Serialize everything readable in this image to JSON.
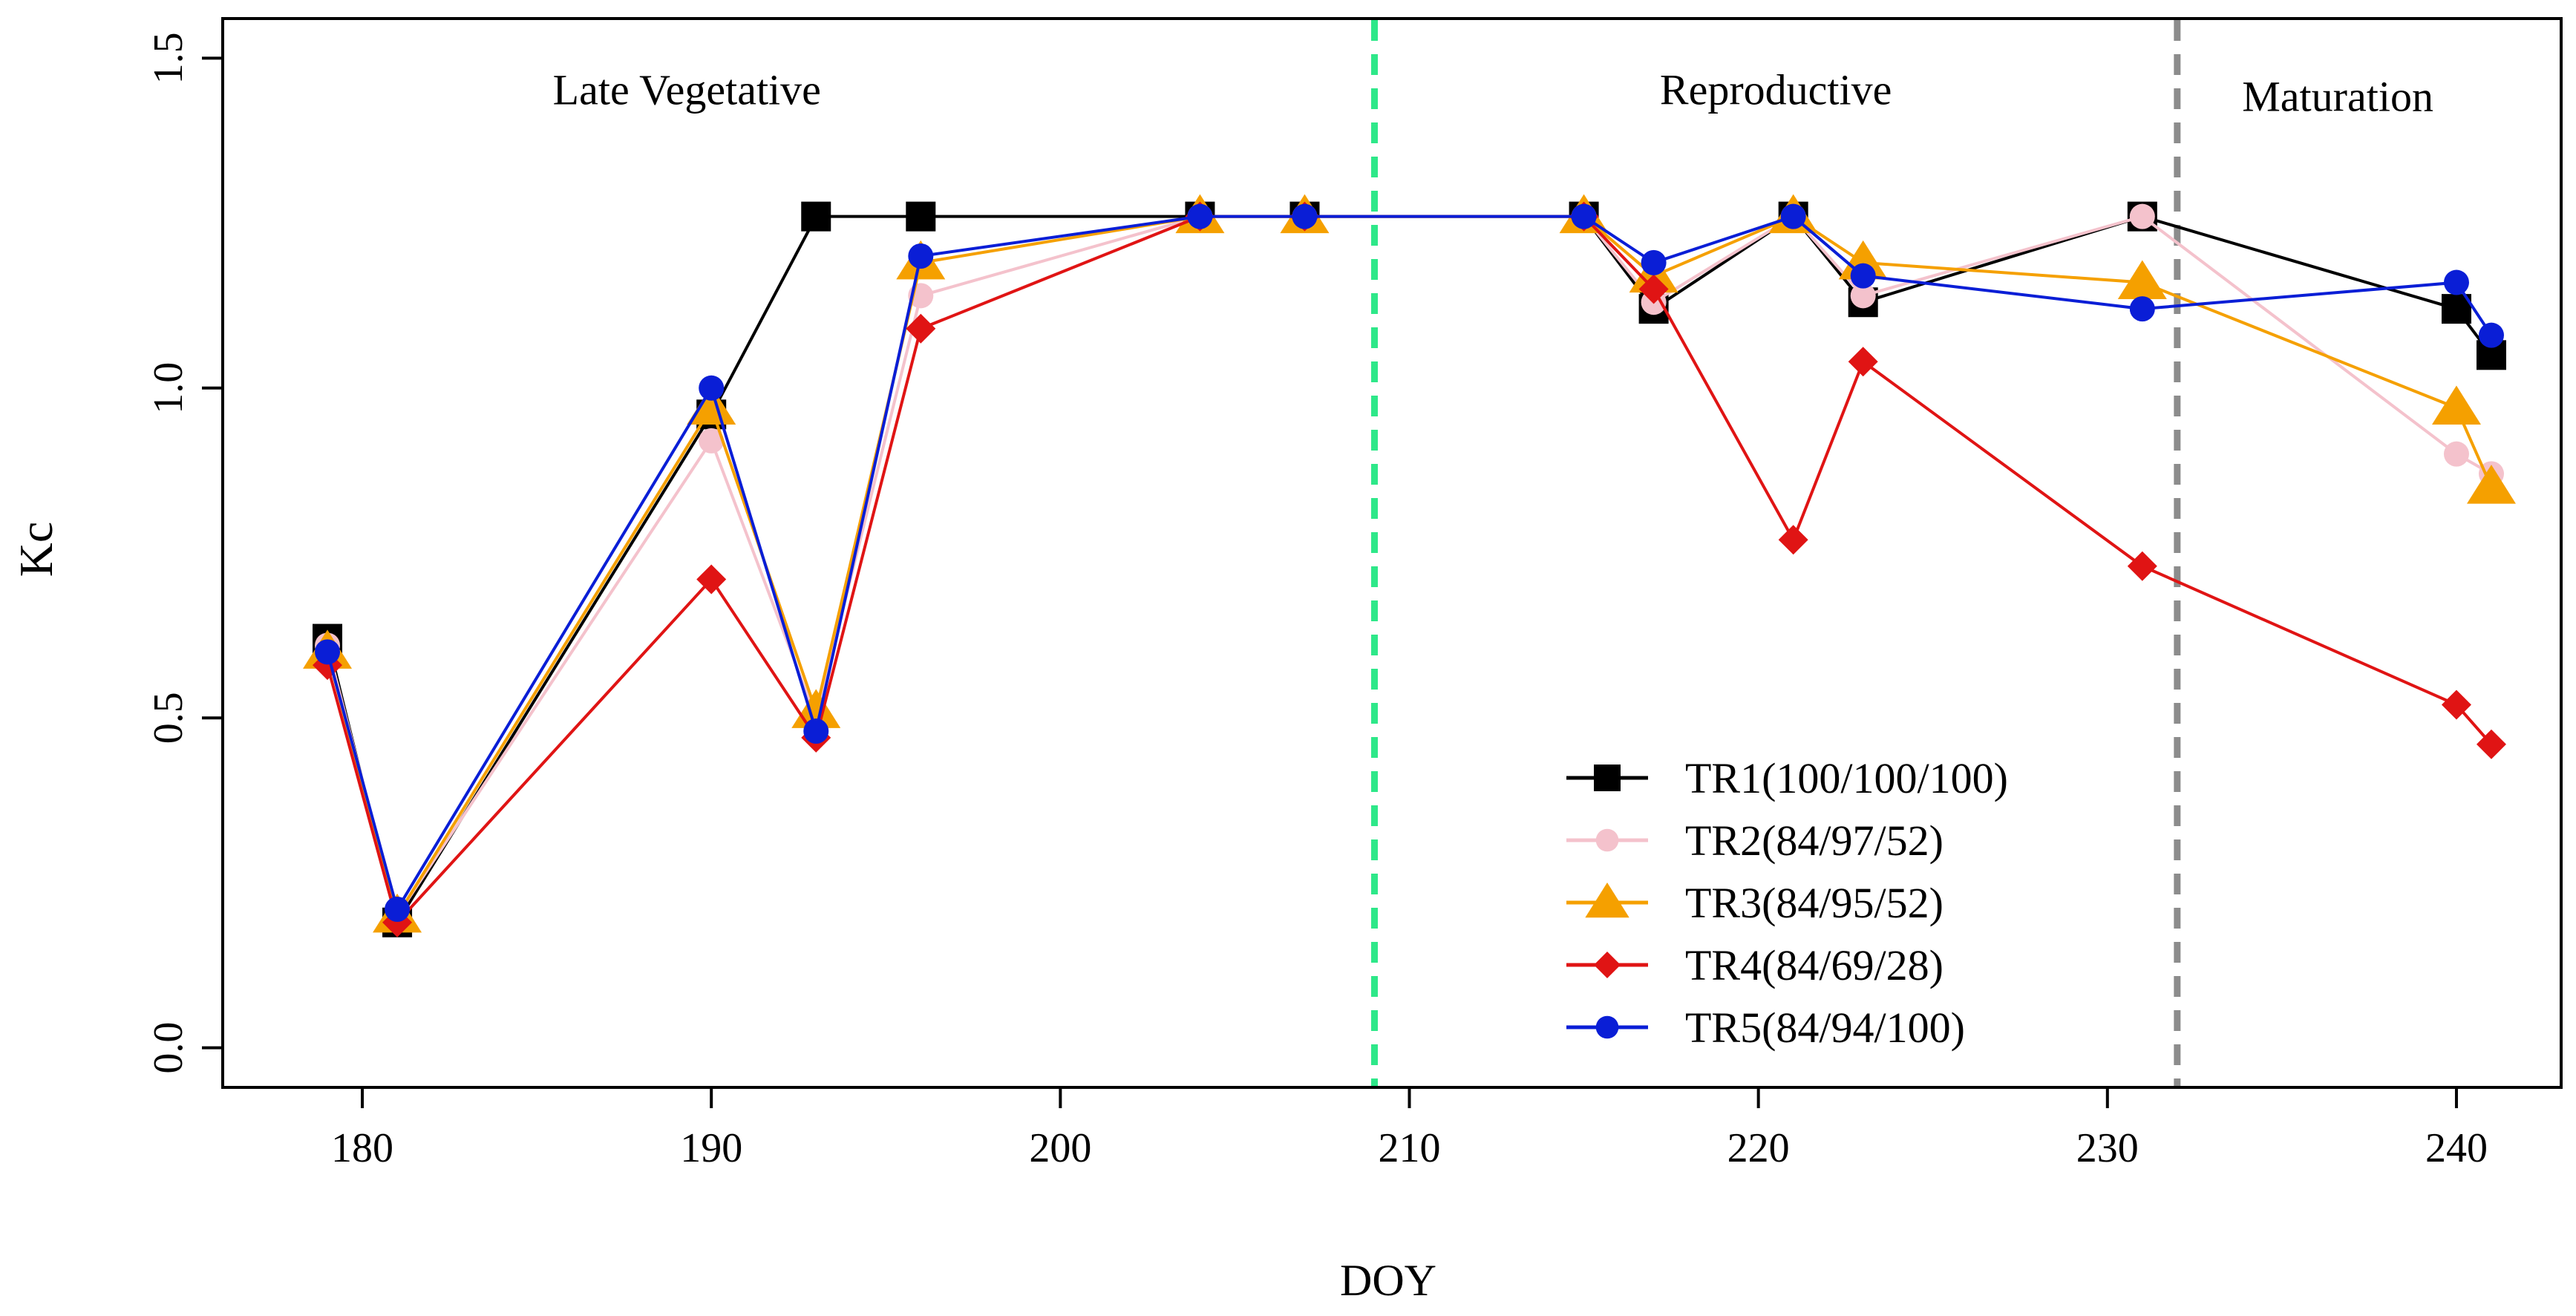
{
  "chart_data": {
    "type": "line",
    "xlabel": "DOY",
    "ylabel": "Kc",
    "xlim": [
      176,
      243
    ],
    "ylim": [
      -0.06,
      1.56
    ],
    "xticks": [
      180,
      190,
      200,
      210,
      220,
      230,
      240
    ],
    "yticks": [
      0.0,
      0.5,
      1.0,
      1.5
    ],
    "xtick_labels": [
      "180",
      "190",
      "200",
      "210",
      "220",
      "230",
      "240"
    ],
    "ytick_labels": [
      "0.0",
      "0.5",
      "1.0",
      "1.5"
    ],
    "phases": [
      {
        "label": "Late Vegetative",
        "x_center": 189.3,
        "y": 1.43
      },
      {
        "label": "Reproductive",
        "x_center": 220.5,
        "y": 1.43
      },
      {
        "label": "Maturation",
        "x_center": 236.6,
        "y": 1.42
      }
    ],
    "vlines": [
      {
        "x": 209,
        "color": "#2ee889"
      },
      {
        "x": 232,
        "color": "#8c8c8c"
      }
    ],
    "series": [
      {
        "name": "TR1(100/100/100)",
        "color": "#000000",
        "marker": "square",
        "points": [
          [
            179,
            0.62
          ],
          [
            181,
            0.19
          ],
          [
            190,
            0.96
          ],
          [
            193,
            1.26
          ],
          [
            196,
            1.26
          ],
          [
            204,
            1.26
          ],
          [
            207,
            1.26
          ],
          [
            215,
            1.26
          ],
          [
            217,
            1.12
          ],
          [
            221,
            1.26
          ],
          [
            223,
            1.13
          ],
          [
            231,
            1.26
          ],
          [
            240,
            1.12
          ],
          [
            241,
            1.05
          ]
        ]
      },
      {
        "name": "TR2(84/97/52)",
        "color": "#f4c2cc",
        "marker": "circle",
        "points": [
          [
            179,
            0.61
          ],
          [
            181,
            0.2
          ],
          [
            190,
            0.92
          ],
          [
            193,
            0.5
          ],
          [
            196,
            1.14
          ],
          [
            204,
            1.26
          ],
          [
            207,
            1.26
          ],
          [
            215,
            1.26
          ],
          [
            217,
            1.13
          ],
          [
            221,
            1.26
          ],
          [
            223,
            1.14
          ],
          [
            231,
            1.26
          ],
          [
            240,
            0.9
          ],
          [
            241,
            0.87
          ]
        ]
      },
      {
        "name": "TR3(84/95/52)",
        "color": "#f5a000",
        "marker": "triangle",
        "points": [
          [
            179,
            0.6
          ],
          [
            181,
            0.2
          ],
          [
            190,
            0.97
          ],
          [
            193,
            0.51
          ],
          [
            196,
            1.19
          ],
          [
            204,
            1.26
          ],
          [
            207,
            1.26
          ],
          [
            215,
            1.26
          ],
          [
            217,
            1.17
          ],
          [
            221,
            1.26
          ],
          [
            223,
            1.19
          ],
          [
            231,
            1.16
          ],
          [
            240,
            0.97
          ],
          [
            241,
            0.85
          ]
        ]
      },
      {
        "name": "TR4(84/69/28)",
        "color": "#e01414",
        "marker": "diamond",
        "points": [
          [
            179,
            0.58
          ],
          [
            181,
            0.19
          ],
          [
            190,
            0.71
          ],
          [
            193,
            0.47
          ],
          [
            196,
            1.09
          ],
          [
            204,
            1.26
          ],
          [
            207,
            1.26
          ],
          [
            215,
            1.26
          ],
          [
            217,
            1.15
          ],
          [
            221,
            0.77
          ],
          [
            223,
            1.04
          ],
          [
            231,
            0.73
          ],
          [
            240,
            0.52
          ],
          [
            241,
            0.46
          ]
        ]
      },
      {
        "name": "TR5(84/94/100)",
        "color": "#0a1ed6",
        "marker": "circle",
        "points": [
          [
            179,
            0.6
          ],
          [
            181,
            0.21
          ],
          [
            190,
            1.0
          ],
          [
            193,
            0.48
          ],
          [
            196,
            1.2
          ],
          [
            204,
            1.26
          ],
          [
            207,
            1.26
          ],
          [
            215,
            1.26
          ],
          [
            217,
            1.19
          ],
          [
            221,
            1.26
          ],
          [
            223,
            1.17
          ],
          [
            231,
            1.12
          ],
          [
            240,
            1.16
          ],
          [
            241,
            1.08
          ]
        ]
      }
    ],
    "legend": {
      "position": "bottom-right-center"
    }
  }
}
